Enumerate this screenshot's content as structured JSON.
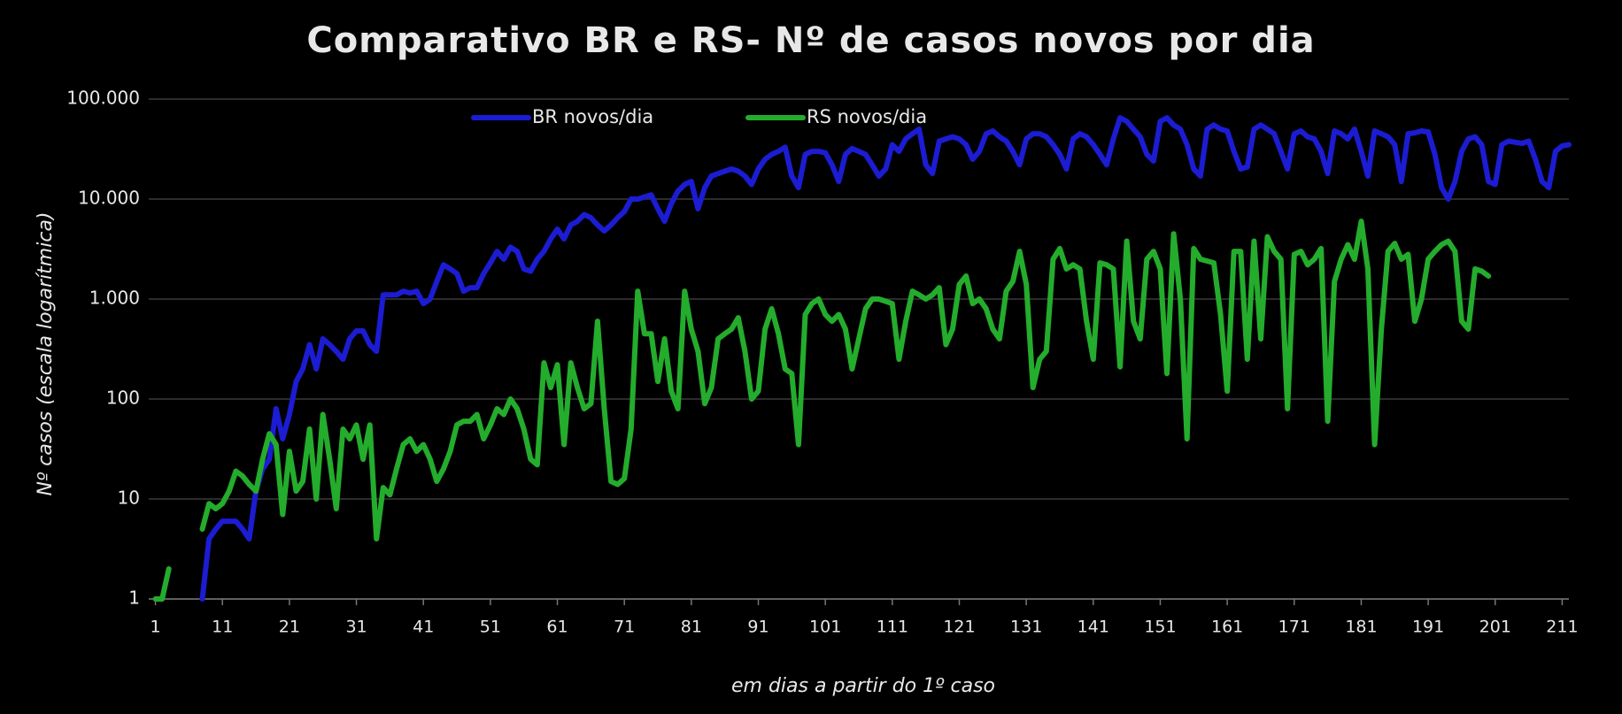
{
  "chart_data": {
    "type": "line",
    "title": "Comparativo BR e RS- Nº de casos novos por dia",
    "xlabel": "em dias a partir do 1º caso",
    "ylabel": "Nº casos (escala logarítmica)",
    "log_y": true,
    "grid": true,
    "legend": "top",
    "xlim": [
      0,
      212
    ],
    "xticks": [
      1,
      11,
      21,
      31,
      41,
      51,
      61,
      71,
      81,
      91,
      101,
      111,
      121,
      131,
      141,
      151,
      161,
      171,
      181,
      191,
      201,
      211
    ],
    "ylim": [
      1,
      100000
    ],
    "yticks": [
      {
        "value": 100000,
        "label": "100.000"
      },
      {
        "value": 10000,
        "label": "10.000"
      },
      {
        "value": 1000,
        "label": "1.000"
      },
      100,
      10,
      1
    ],
    "x": [
      1,
      2,
      3,
      4,
      5,
      6,
      7,
      8,
      9,
      10,
      11,
      12,
      13,
      14,
      15,
      16,
      17,
      18,
      19,
      20,
      21,
      22,
      23,
      24,
      25,
      26,
      27,
      28,
      29,
      30,
      31,
      32,
      33,
      34,
      35,
      36,
      37,
      38,
      39,
      40,
      41,
      42,
      43,
      44,
      45,
      46,
      47,
      48,
      49,
      50,
      51,
      52,
      53,
      54,
      55,
      56,
      57,
      58,
      59,
      60,
      61,
      62,
      63,
      64,
      65,
      66,
      67,
      68,
      69,
      70,
      71,
      72,
      73,
      74,
      75,
      76,
      77,
      78,
      79,
      80,
      81,
      82,
      83,
      84,
      85,
      86,
      87,
      88,
      89,
      90,
      91,
      92,
      93,
      94,
      95,
      96,
      97,
      98,
      99,
      100,
      101,
      102,
      103,
      104,
      105,
      106,
      107,
      108,
      109,
      110,
      111,
      112,
      113,
      114,
      115,
      116,
      117,
      118,
      119,
      120,
      121,
      122,
      123,
      124,
      125,
      126,
      127,
      128,
      129,
      130,
      131,
      132,
      133,
      134,
      135,
      136,
      137,
      138,
      139,
      140,
      141,
      142,
      143,
      144,
      145,
      146,
      147,
      148,
      149,
      150,
      151,
      152,
      153,
      154,
      155,
      156,
      157,
      158,
      159,
      160,
      161,
      162,
      163,
      164,
      165,
      166,
      167,
      168,
      169,
      170,
      171,
      172,
      173,
      174,
      175,
      176,
      177,
      178,
      179,
      180,
      181,
      182,
      183,
      184,
      185,
      186,
      187,
      188,
      189,
      190,
      191,
      192,
      193,
      194,
      195,
      196,
      197,
      198,
      199,
      200,
      201,
      202,
      203,
      204,
      205,
      206,
      207,
      208,
      209,
      210,
      211,
      212
    ],
    "series": [
      {
        "name": "BR novos/dia",
        "color": "#1c1cd2",
        "values": [
          null,
          null,
          null,
          null,
          null,
          null,
          null,
          1,
          4,
          5,
          6,
          6,
          6,
          5,
          4,
          12,
          20,
          25,
          80,
          40,
          70,
          150,
          200,
          350,
          200,
          400,
          350,
          300,
          250,
          400,
          480,
          480,
          350,
          300,
          1100,
          1100,
          1100,
          1200,
          1150,
          1200,
          900,
          1000,
          1500,
          2200,
          2000,
          1800,
          1200,
          1300,
          1300,
          1800,
          2300,
          3000,
          2500,
          3300,
          3000,
          2000,
          1900,
          2500,
          3000,
          4000,
          5000,
          4000,
          5500,
          6000,
          7000,
          6500,
          5500,
          4800,
          5500,
          6500,
          7500,
          10000,
          10000,
          10500,
          11000,
          8000,
          6000,
          9000,
          12000,
          14000,
          15000,
          8000,
          13000,
          17000,
          18000,
          19000,
          20000,
          19000,
          17000,
          14000,
          20000,
          25000,
          28000,
          30000,
          33000,
          17000,
          13000,
          28000,
          30000,
          30000,
          29000,
          22000,
          15000,
          28000,
          32000,
          30000,
          28000,
          22000,
          17000,
          20000,
          35000,
          30000,
          40000,
          45000,
          50000,
          22000,
          18000,
          38000,
          40000,
          42000,
          40000,
          35000,
          25000,
          30000,
          45000,
          48000,
          42000,
          38000,
          30000,
          22000,
          40000,
          45000,
          45000,
          42000,
          35000,
          28000,
          20000,
          40000,
          45000,
          42000,
          35000,
          28000,
          22000,
          40000,
          65000,
          60000,
          50000,
          42000,
          28000,
          24000,
          60000,
          65000,
          55000,
          50000,
          35000,
          20000,
          17000,
          50000,
          55000,
          50000,
          48000,
          30000,
          20000,
          21000,
          50000,
          55000,
          50000,
          45000,
          30000,
          20000,
          45000,
          48000,
          42000,
          40000,
          30000,
          18000,
          48000,
          45000,
          40000,
          50000,
          30000,
          17000,
          48000,
          45000,
          42000,
          35000,
          15000,
          45000,
          46000,
          48000,
          47000,
          28000,
          13000,
          10000,
          15000,
          30000,
          40000,
          42000,
          35000,
          15000,
          14000,
          35000,
          38000,
          37000,
          36000,
          38000,
          25000,
          15000,
          13000,
          30000,
          34000,
          35000
        ]
      },
      {
        "name": "RS novos/dia",
        "color": "#24ac2c",
        "values": [
          1,
          1,
          2,
          null,
          null,
          null,
          null,
          5,
          9,
          8,
          9,
          12,
          19,
          17,
          14,
          12,
          25,
          45,
          35,
          7,
          30,
          12,
          15,
          50,
          10,
          70,
          25,
          8,
          50,
          40,
          55,
          25,
          55,
          4,
          13,
          11,
          20,
          35,
          40,
          30,
          35,
          25,
          15,
          20,
          30,
          55,
          60,
          60,
          70,
          40,
          55,
          80,
          70,
          100,
          80,
          50,
          25,
          22,
          230,
          130,
          220,
          35,
          230,
          130,
          80,
          90,
          600,
          80,
          15,
          14,
          16,
          50,
          1200,
          450,
          450,
          150,
          400,
          120,
          80,
          1200,
          500,
          300,
          90,
          130,
          400,
          450,
          500,
          650,
          300,
          100,
          120,
          500,
          800,
          450,
          200,
          180,
          35,
          700,
          900,
          1000,
          700,
          600,
          700,
          500,
          200,
          400,
          800,
          1000,
          1000,
          950,
          900,
          250,
          600,
          1200,
          1100,
          1000,
          1100,
          1300,
          350,
          500,
          1400,
          1700,
          900,
          1000,
          800,
          500,
          400,
          1200,
          1500,
          3000,
          1400,
          130,
          250,
          300,
          2500,
          3200,
          2000,
          2200,
          2000,
          600,
          250,
          2300,
          2200,
          2000,
          210,
          3800,
          600,
          400,
          2500,
          3000,
          2000,
          180,
          4500,
          1000,
          40,
          3200,
          2500,
          2400,
          2300,
          700,
          120,
          3000,
          3000,
          250,
          3800,
          400,
          4200,
          3000,
          2500,
          80,
          2800,
          3000,
          2200,
          2500,
          3200,
          60,
          1500,
          2500,
          3500,
          2500,
          6000,
          2000,
          35,
          500,
          3000,
          3600,
          2500,
          2800,
          600,
          1000,
          2500,
          3000,
          3500,
          3800,
          3000,
          600,
          500,
          2000,
          1900,
          1700,
          null,
          null,
          null,
          null,
          null,
          null,
          null,
          null,
          null,
          null,
          null,
          null
        ]
      }
    ]
  }
}
